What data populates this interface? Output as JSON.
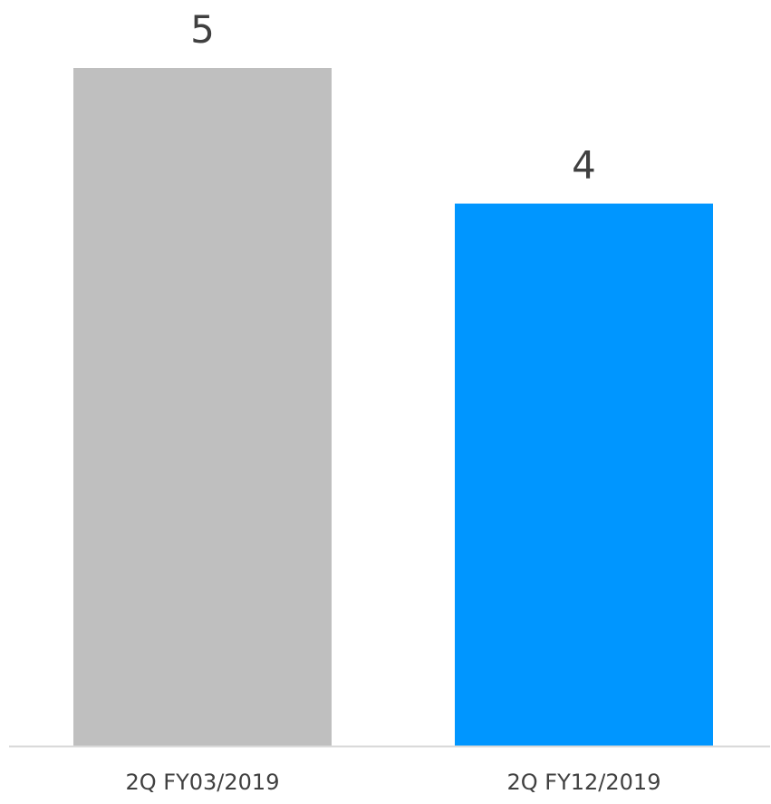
{
  "chart_data": {
    "type": "bar",
    "categories": [
      "2Q FY03/2019",
      "2Q FY12/2019"
    ],
    "values": [
      5,
      4
    ],
    "data_labels": [
      "5",
      "4"
    ],
    "colors": [
      "#bfbfbf",
      "#0096ff"
    ],
    "axis_color": "#d9d9d9",
    "label_color": "#404040",
    "ylim": [
      0,
      5
    ],
    "grid": false,
    "legend": "none",
    "title": "",
    "xlabel": "",
    "ylabel": ""
  }
}
